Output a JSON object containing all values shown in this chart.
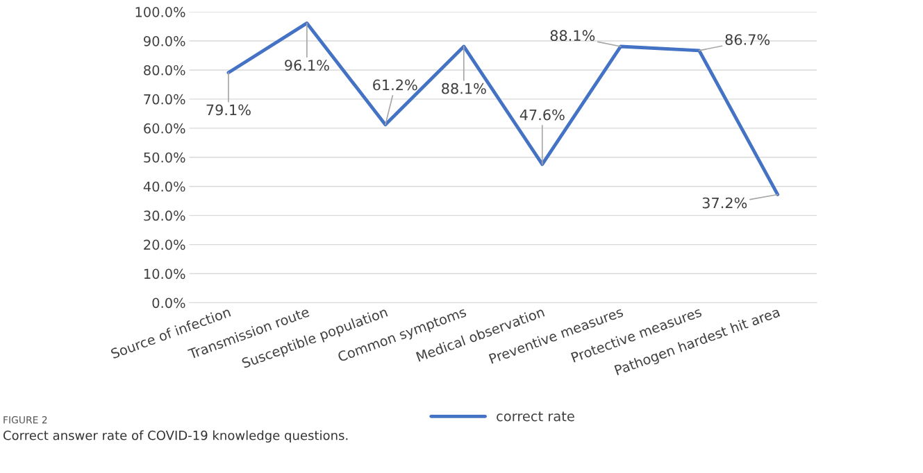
{
  "chart_data": {
    "type": "line",
    "categories": [
      "Source of infection",
      "Transmission route",
      "Susceptible population",
      "Common symptoms",
      "Medical observation",
      "Preventive measures",
      "Protective measures",
      "Pathogen hardest hit area"
    ],
    "series": [
      {
        "name": "correct rate",
        "color": "#4472c4",
        "values": [
          79.1,
          96.1,
          61.2,
          88.1,
          47.6,
          88.1,
          86.7,
          37.2
        ],
        "value_labels": [
          "79.1%",
          "96.1%",
          "61.2%",
          "88.1%",
          "47.6%",
          "88.1%",
          "86.7%",
          "37.2%"
        ]
      }
    ],
    "ylim": [
      0,
      100
    ],
    "yticks": [
      {
        "value": 0,
        "label": "0.0%"
      },
      {
        "value": 10,
        "label": "10.0%"
      },
      {
        "value": 20,
        "label": "20.0%"
      },
      {
        "value": 30,
        "label": "30.0%"
      },
      {
        "value": 40,
        "label": "40.0%"
      },
      {
        "value": 50,
        "label": "50.0%"
      },
      {
        "value": 60,
        "label": "60.0%"
      },
      {
        "value": 70,
        "label": "70.0%"
      },
      {
        "value": 80,
        "label": "80.0%"
      },
      {
        "value": 90,
        "label": "90.0%"
      },
      {
        "value": 100,
        "label": "100.0%"
      }
    ],
    "grid": "y",
    "legend": "bottom",
    "marker": "none",
    "line_style": "solid",
    "annotations": [
      "FIGURE 2",
      "Correct answer rate of COVID-19 knowledge questions."
    ]
  }
}
